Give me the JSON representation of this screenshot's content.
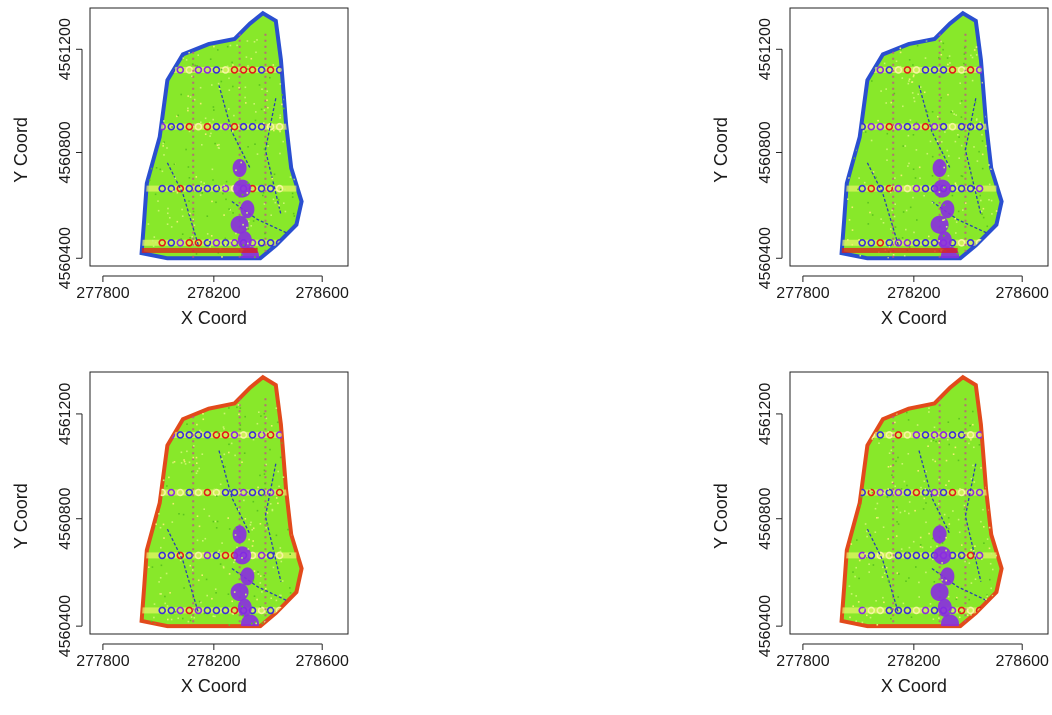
{
  "chart_data": [
    {
      "type": "scatter",
      "panel": "top-left",
      "xlabel": "X Coord",
      "ylabel": "Y Coord",
      "xticks": [
        "277800",
        "278200",
        "278600"
      ],
      "yticks": [
        "4560400",
        "4560800",
        "4561200"
      ],
      "xlim": [
        277780,
        278720
      ],
      "ylim": [
        4560380,
        4561380
      ],
      "colors": {
        "background": "#88e82a",
        "low": "#3a2fd8",
        "mid": "#8a2be2",
        "high": "#e21b1b",
        "edge": "#2a4fd0"
      }
    },
    {
      "type": "scatter",
      "panel": "top-right",
      "xlabel": "X Coord",
      "ylabel": "Y Coord",
      "xticks": [
        "277800",
        "278200",
        "278600"
      ],
      "yticks": [
        "4560400",
        "4560800",
        "4561200"
      ],
      "xlim": [
        277780,
        278720
      ],
      "ylim": [
        4560380,
        4561380
      ],
      "colors": {
        "background": "#88e82a",
        "low": "#3a2fd8",
        "mid": "#8a2be2",
        "high": "#e21b1b",
        "edge": "#2a4fd0"
      }
    },
    {
      "type": "scatter",
      "panel": "bottom-left",
      "xlabel": "X Coord",
      "ylabel": "Y Coord",
      "xticks": [
        "277800",
        "278200",
        "278600"
      ],
      "yticks": [
        "4560400",
        "4560800",
        "4561200"
      ],
      "xlim": [
        277780,
        278720
      ],
      "ylim": [
        4560380,
        4561380
      ],
      "colors": {
        "background": "#88e82a",
        "low": "#3a2fd8",
        "mid": "#8a2be2",
        "high": "#e21b1b",
        "edge": "#e24a1b"
      }
    },
    {
      "type": "scatter",
      "panel": "bottom-right",
      "xlabel": "X Coord",
      "ylabel": "Y Coord",
      "xticks": [
        "277800",
        "278200",
        "278600"
      ],
      "yticks": [
        "4560400",
        "4560800",
        "4561200"
      ],
      "xlim": [
        277780,
        278720
      ],
      "ylim": [
        4560380,
        4561380
      ],
      "colors": {
        "background": "#88e82a",
        "low": "#3a2fd8",
        "mid": "#8a2be2",
        "high": "#e21b1b",
        "edge": "#e24a1b"
      }
    }
  ]
}
